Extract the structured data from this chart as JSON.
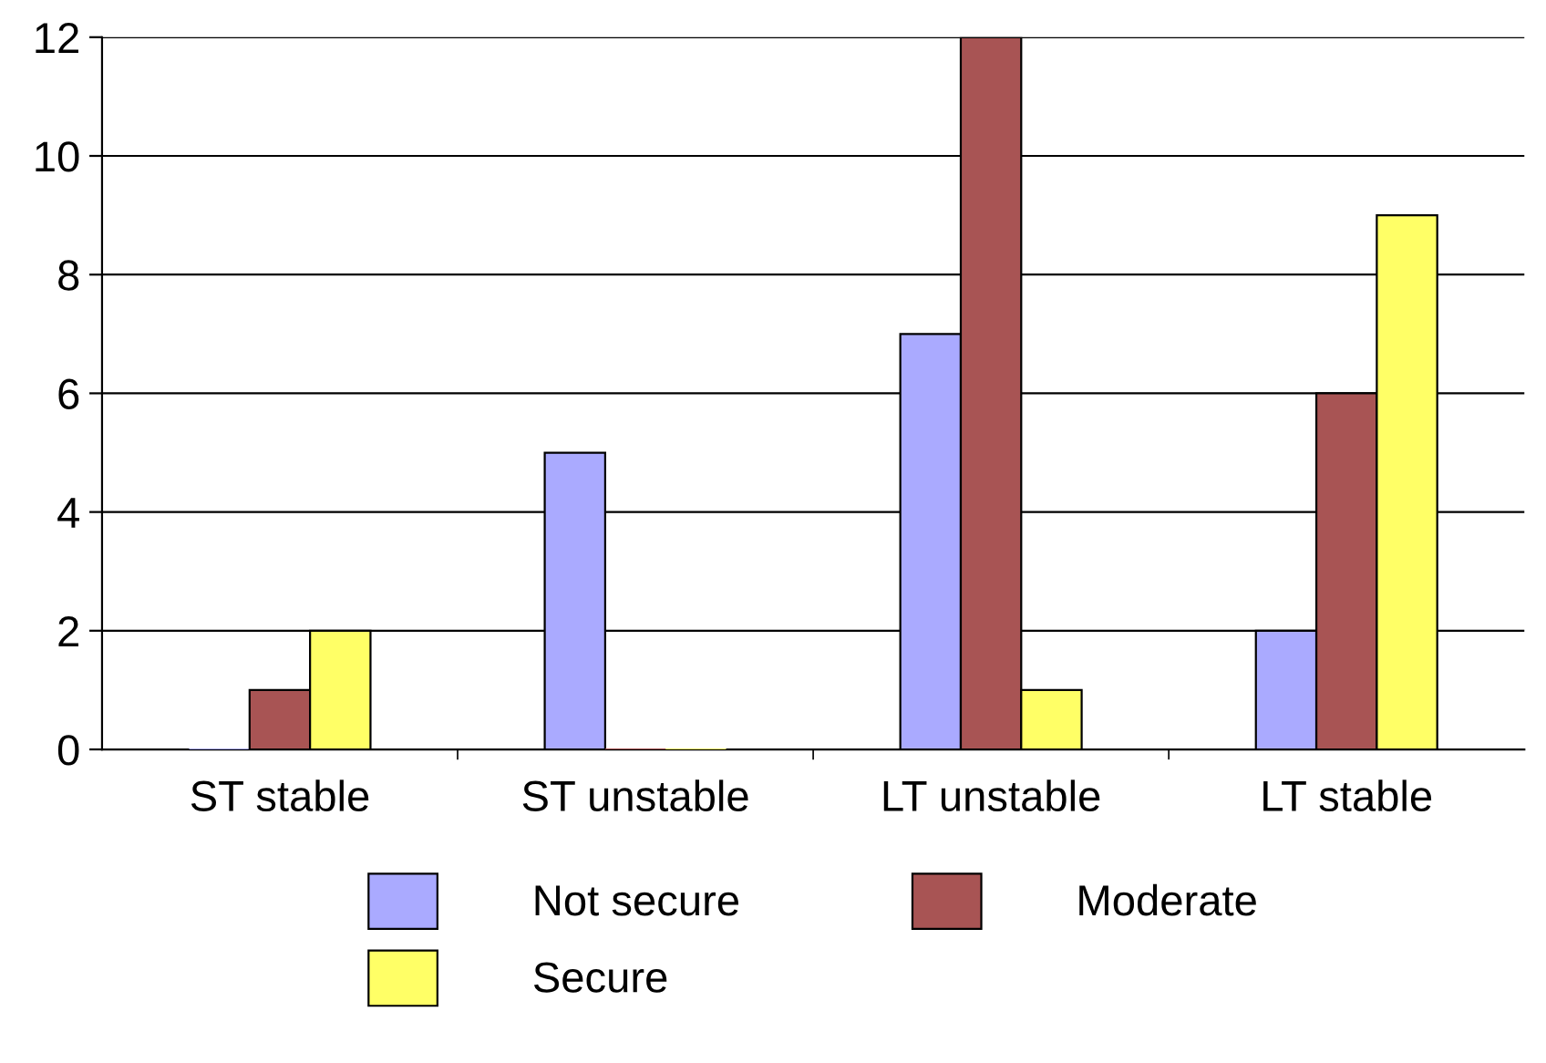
{
  "chart_data": {
    "type": "bar",
    "categories": [
      "ST stable",
      "ST unstable",
      "LT unstable",
      "LT stable"
    ],
    "series": [
      {
        "name": "Not secure",
        "color": "#aaaaff",
        "values": [
          0,
          5,
          7,
          2
        ]
      },
      {
        "name": "Moderate",
        "color": "#a85454",
        "values": [
          1,
          0,
          12,
          6
        ]
      },
      {
        "name": "Secure",
        "color": "#ffff66",
        "values": [
          2,
          0,
          1,
          9
        ]
      }
    ],
    "ylim": [
      0,
      12
    ],
    "yticks": [
      0,
      2,
      4,
      6,
      8,
      10,
      12
    ],
    "grid": "y",
    "legend": "bottom"
  }
}
